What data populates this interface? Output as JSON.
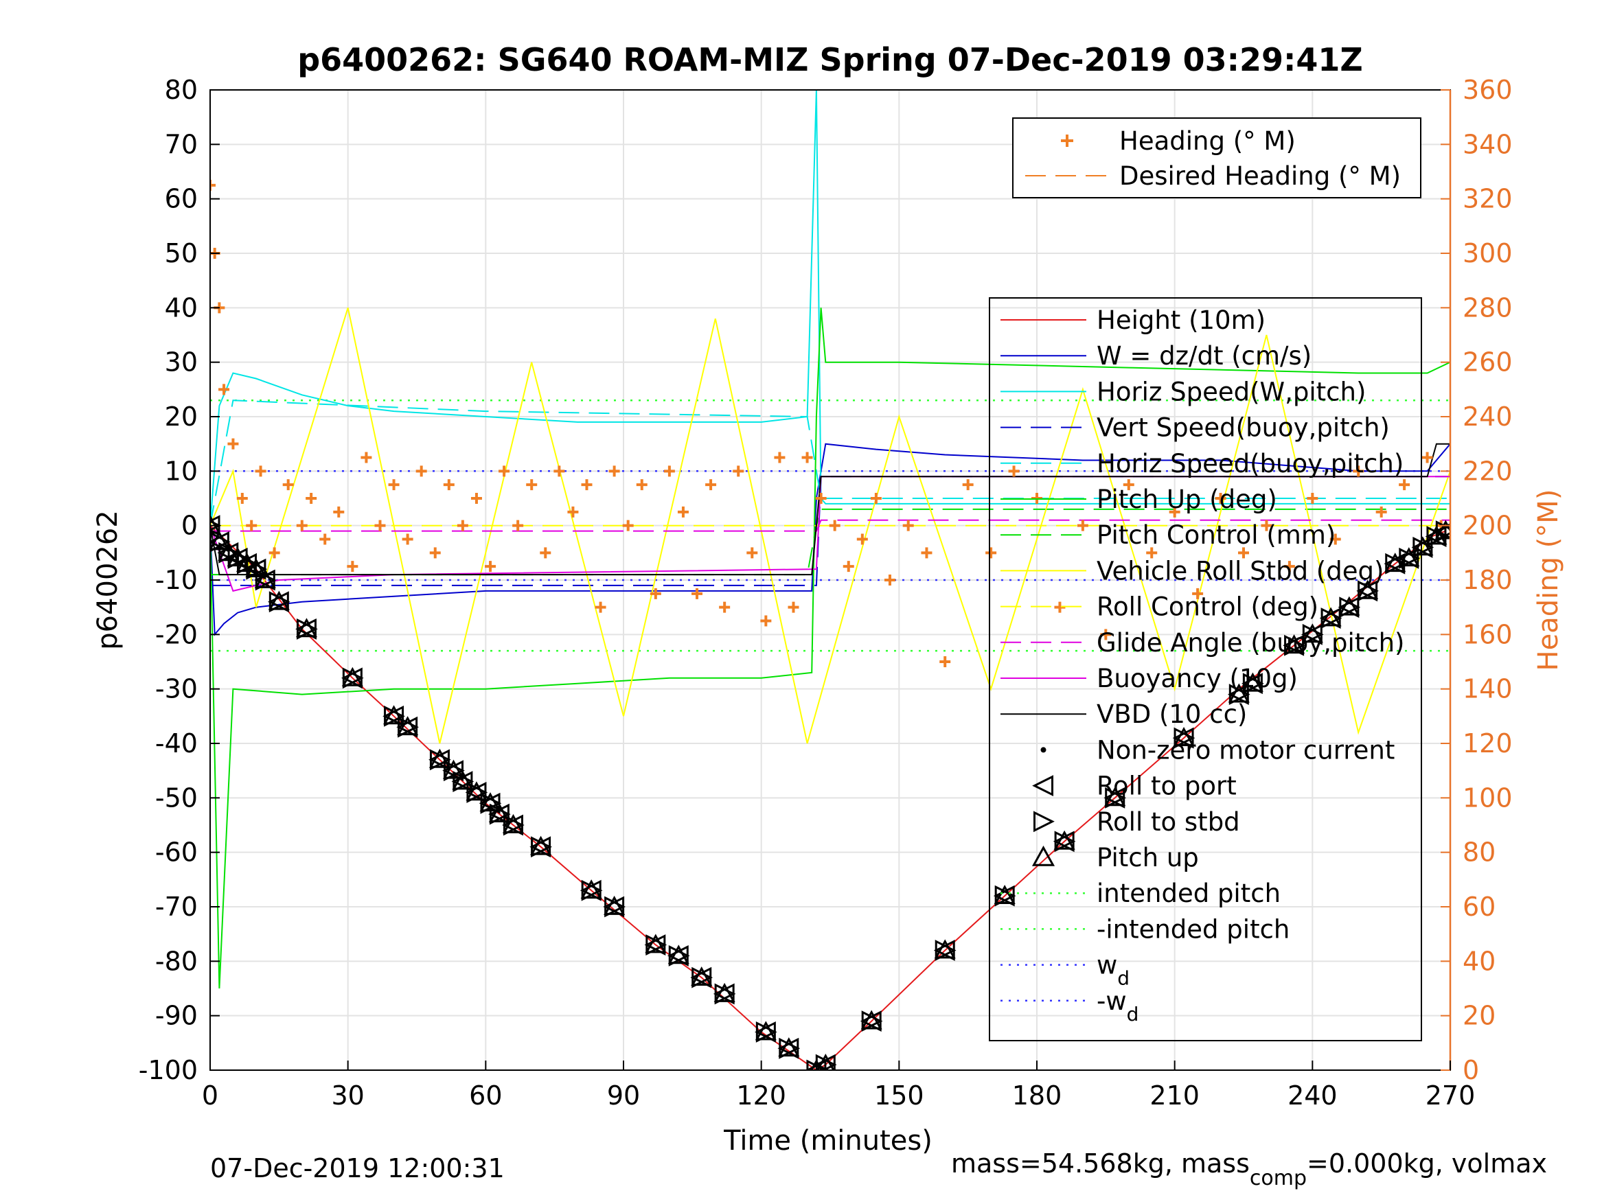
{
  "chart_data": {
    "type": "line",
    "title": "p6400262: SG640 ROAM-MIZ Spring 07-Dec-2019 03:29:41Z",
    "xlabel": "Time (minutes)",
    "ylabel": "p6400262",
    "ylabel_right": "Heading (°M)",
    "xlim": [
      0,
      270
    ],
    "ylim": [
      -100,
      80
    ],
    "ylim_right": [
      0,
      360
    ],
    "x_ticks": [
      0,
      30,
      60,
      90,
      120,
      150,
      180,
      210,
      240,
      270
    ],
    "y_ticks": [
      -100,
      -90,
      -80,
      -70,
      -60,
      -50,
      -40,
      -30,
      -20,
      -10,
      0,
      10,
      20,
      30,
      40,
      50,
      60,
      70,
      80
    ],
    "y_ticks_right": [
      0,
      20,
      40,
      60,
      80,
      100,
      120,
      140,
      160,
      180,
      200,
      220,
      240,
      260,
      280,
      300,
      320,
      340,
      360
    ],
    "grid": true,
    "footer_left": "07-Dec-2019 12:00:31",
    "footer_right": "mass=54.568kg, mass",
    "footer_right_sub": "comp",
    "footer_right_tail": "=0.000kg, volmax",
    "colors": {
      "heading": "#f07f24",
      "height": "#e41a1c",
      "w": "#0000cc",
      "horiz": "#00e5e5",
      "pitch": "#00e000",
      "roll": "#ffff00",
      "glide": "#e000e0",
      "black": "#000000",
      "intended": "#33ff33",
      "wd": "#3333ff",
      "axis_right": "#e8742a"
    },
    "legend_top": {
      "placement": "top-right",
      "entries": [
        "Heading (° M)",
        "Desired Heading (° M)"
      ]
    },
    "legend_main": {
      "placement": "right",
      "entries": [
        "Height (10m)",
        "W = dz/dt (cm/s)",
        "Horiz Speed(W,pitch)",
        "Vert Speed(buoy,pitch)",
        "Horiz Speed(buoy,pitch)",
        "Pitch Up (deg)",
        "Pitch Control (mm)",
        "Vehicle Roll Stbd (deg)",
        "Roll Control (deg)",
        "Glide Angle (buoy,pitch)",
        "Buoyancy (10g)",
        "VBD (10 cc)",
        "Non-zero motor current",
        "Roll to port",
        "Roll to stbd",
        "Pitch up",
        "intended pitch",
        "-intended pitch",
        "w",
        "-w"
      ],
      "subscript": "d"
    },
    "series": [
      {
        "name": "Height (10m)",
        "x": [
          0,
          10,
          20,
          31,
          40,
          50,
          60,
          72,
          83,
          97,
          107,
          120,
          132,
          134,
          144,
          160,
          173,
          186,
          197,
          212,
          224,
          236,
          248,
          258,
          266,
          269
        ],
        "y": [
          0,
          -8,
          -19,
          -28,
          -35,
          -43,
          -51,
          -59,
          -67,
          -77,
          -83,
          -93,
          -100,
          -99,
          -91,
          -78,
          -68,
          -58,
          -50,
          -39,
          -30,
          -22,
          -14,
          -7,
          -2,
          -1
        ]
      },
      {
        "name": "W = dz/dt (cm/s)",
        "x": [
          0,
          1,
          3,
          6,
          10,
          20,
          40,
          60,
          80,
          100,
          120,
          131,
          132,
          134,
          145,
          160,
          190,
          220,
          250,
          265,
          270
        ],
        "y": [
          0,
          -20,
          -18,
          -16,
          -15,
          -14,
          -13,
          -12,
          -12,
          -12,
          -12,
          -12,
          5,
          15,
          14,
          13,
          12,
          12,
          10,
          10,
          15
        ]
      },
      {
        "name": "Horiz Speed(W,pitch)",
        "x": [
          0,
          2,
          5,
          10,
          20,
          30,
          40,
          60,
          80,
          100,
          120,
          130,
          132,
          133,
          134,
          135,
          150,
          200,
          270
        ],
        "y": [
          0,
          22,
          28,
          27,
          24,
          22,
          21,
          20,
          19,
          19,
          19,
          20,
          80,
          5,
          4,
          4,
          4,
          4,
          4
        ]
      },
      {
        "name": "Vert Speed(buoy,pitch)",
        "x": [
          0,
          10,
          132,
          133,
          270
        ],
        "y": [
          -11,
          -11,
          -11,
          9,
          9
        ]
      },
      {
        "name": "Horiz Speed(buoy,pitch)",
        "x": [
          0,
          5,
          60,
          130,
          133,
          270
        ],
        "y": [
          0,
          23,
          21,
          20,
          5,
          5
        ]
      },
      {
        "name": "Pitch Up (deg)",
        "x": [
          0,
          2,
          5,
          20,
          40,
          60,
          80,
          100,
          120,
          131,
          132,
          133,
          134,
          150,
          200,
          250,
          265,
          270
        ],
        "y": [
          0,
          -85,
          -30,
          -31,
          -30,
          -30,
          -29,
          -28,
          -28,
          -27,
          20,
          40,
          30,
          30,
          29,
          28,
          28,
          30
        ]
      },
      {
        "name": "Pitch Control (mm)",
        "x": [
          0,
          3,
          130,
          132,
          133,
          270
        ],
        "y": [
          -9,
          -9,
          -9,
          0,
          3,
          3
        ]
      },
      {
        "name": "Vehicle Roll Stbd (deg)",
        "x": [
          0,
          5,
          10,
          30,
          50,
          70,
          90,
          110,
          130,
          150,
          170,
          190,
          210,
          230,
          250,
          270
        ],
        "y": [
          0,
          10,
          -15,
          40,
          -40,
          30,
          -35,
          38,
          -40,
          20,
          -30,
          25,
          -30,
          35,
          -38,
          10
        ]
      },
      {
        "name": "Roll Control (deg)",
        "x": [
          0,
          270
        ],
        "y": [
          0,
          0
        ]
      },
      {
        "name": "Glide Angle (buoy,pitch)",
        "x": [
          0,
          132,
          133,
          270
        ],
        "y": [
          -1,
          -1,
          1,
          1
        ]
      },
      {
        "name": "Buoyancy (10g)",
        "x": [
          0,
          5,
          15,
          40,
          132,
          133,
          270
        ],
        "y": [
          0,
          -12,
          -10,
          -9,
          -8,
          9,
          9
        ]
      },
      {
        "name": "VBD (10 cc)",
        "x": [
          0,
          2,
          131,
          133,
          265,
          267,
          270
        ],
        "y": [
          0,
          -9,
          -9,
          9,
          9,
          15,
          15
        ]
      },
      {
        "name": "intended pitch",
        "x": [
          0,
          270
        ],
        "y": [
          23,
          23
        ]
      },
      {
        "name": "-intended pitch",
        "x": [
          0,
          270
        ],
        "y": [
          -23,
          -23
        ]
      },
      {
        "name": "w",
        "x": [
          0,
          270
        ],
        "y": [
          10,
          10
        ]
      },
      {
        "name": "-w",
        "x": [
          0,
          270
        ],
        "y": [
          -10,
          -10
        ]
      }
    ],
    "heading_points": {
      "x": [
        0,
        1,
        2,
        3,
        5,
        7,
        9,
        11,
        14,
        17,
        20,
        22,
        25,
        28,
        31,
        34,
        37,
        40,
        43,
        46,
        49,
        52,
        55,
        58,
        61,
        64,
        67,
        70,
        73,
        76,
        79,
        82,
        85,
        88,
        91,
        94,
        97,
        100,
        103,
        106,
        109,
        112,
        115,
        118,
        121,
        124,
        127,
        130,
        133,
        136,
        139,
        142,
        145,
        148,
        152,
        156,
        160,
        165,
        170,
        175,
        180,
        185,
        190,
        195,
        200,
        205,
        210,
        215,
        220,
        225,
        230,
        235,
        240,
        245,
        250,
        255,
        260,
        265,
        268
      ],
      "y": [
        325,
        300,
        280,
        250,
        230,
        210,
        200,
        220,
        190,
        215,
        200,
        210,
        195,
        205,
        185,
        225,
        200,
        215,
        195,
        220,
        190,
        215,
        200,
        210,
        185,
        220,
        200,
        215,
        190,
        220,
        205,
        215,
        170,
        220,
        200,
        215,
        175,
        220,
        205,
        175,
        215,
        170,
        220,
        190,
        165,
        225,
        170,
        225,
        210,
        200,
        185,
        195,
        210,
        180,
        200,
        190,
        150,
        215,
        190,
        220,
        210,
        170,
        200,
        160,
        215,
        190,
        205,
        175,
        210,
        190,
        200,
        185,
        210,
        195,
        220,
        205,
        215,
        225,
        200
      ]
    },
    "markers": {
      "x": [
        0,
        2,
        4,
        6,
        8,
        10,
        12,
        15,
        21,
        31,
        40,
        43,
        50,
        53,
        55,
        58,
        61,
        63,
        66,
        72,
        83,
        88,
        97,
        102,
        107,
        112,
        121,
        126,
        132,
        134,
        144,
        160,
        173,
        186,
        197,
        212,
        224,
        227,
        236,
        240,
        244,
        248,
        252,
        258,
        261,
        264,
        267,
        269
      ],
      "y": [
        0,
        -3,
        -5,
        -6,
        -7,
        -8,
        -10,
        -14,
        -19,
        -28,
        -35,
        -37,
        -43,
        -45,
        -47,
        -49,
        -51,
        -53,
        -55,
        -59,
        -67,
        -70,
        -77,
        -79,
        -83,
        -86,
        -93,
        -96,
        -100,
        -99,
        -91,
        -78,
        -68,
        -58,
        -50,
        -39,
        -31,
        -29,
        -22,
        -20,
        -17,
        -15,
        -12,
        -7,
        -6,
        -4,
        -2,
        -1
      ]
    }
  }
}
